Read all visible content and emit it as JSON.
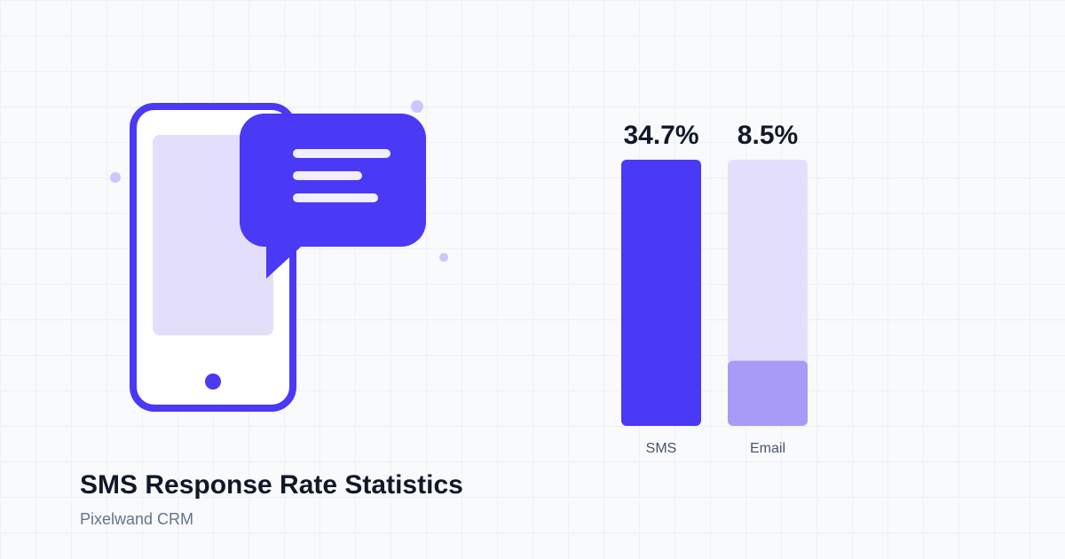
{
  "page": {
    "title": "SMS Response Rate Statistics",
    "subtitle": "Pixelwand CRM"
  },
  "colors": {
    "accent": "#4a39f5",
    "accent_light": "#e3dffb",
    "accent_mid": "#a89bf6",
    "text_dark": "#111827",
    "text_muted": "#64748b"
  },
  "chart_data": {
    "type": "bar",
    "categories": [
      "SMS",
      "Email"
    ],
    "values": [
      34.7,
      8.5
    ],
    "value_labels": [
      "34.7%",
      "8.5%"
    ],
    "title": "",
    "xlabel": "",
    "ylabel": "",
    "ylim": [
      0,
      34.7
    ],
    "grid": false,
    "legend": "none"
  },
  "icons": [
    "phone-icon",
    "chat-bubble-icon"
  ]
}
